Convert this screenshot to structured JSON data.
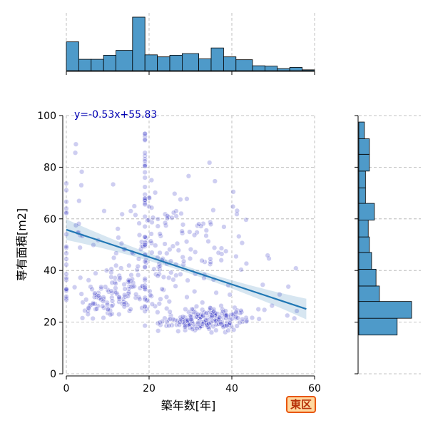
{
  "chart_data": {
    "type": "scatter",
    "xlabel": "築年数[年]",
    "ylabel": "専有面積[m2]",
    "xlim": [
      0,
      60
    ],
    "ylim": [
      0,
      100
    ],
    "xticks": [
      "0",
      "20",
      "40",
      "60"
    ],
    "yticks": [
      "0",
      "20",
      "40",
      "60",
      "80",
      "100"
    ],
    "grid": true,
    "point_color": "#1f1fbf",
    "regression": {
      "label": "y=-0.53x+55.83",
      "slope": -0.53,
      "intercept": 55.83,
      "x_range": [
        0,
        58
      ],
      "color": "#1f77b4"
    },
    "top_histogram": {
      "bins": [
        [
          0,
          3
        ],
        [
          3,
          6
        ],
        [
          6,
          9
        ],
        [
          9,
          12
        ],
        [
          12,
          16
        ],
        [
          16,
          19
        ],
        [
          19,
          22
        ],
        [
          22,
          25
        ],
        [
          25,
          28
        ],
        [
          28,
          32
        ],
        [
          32,
          35
        ],
        [
          35,
          38
        ],
        [
          38,
          41
        ],
        [
          41,
          45
        ],
        [
          45,
          48
        ],
        [
          48,
          51
        ],
        [
          51,
          54
        ],
        [
          54,
          57
        ],
        [
          57,
          60
        ]
      ],
      "counts": [
        71,
        28,
        28,
        38,
        50,
        132,
        39,
        34,
        38,
        42,
        29,
        56,
        34,
        27,
        12,
        11,
        5,
        8,
        2
      ]
    },
    "right_histogram": {
      "bins": [
        [
          15,
          21.5
        ],
        [
          21.5,
          28
        ],
        [
          28,
          34
        ],
        [
          34,
          40.5
        ],
        [
          40.5,
          47
        ],
        [
          47,
          53
        ],
        [
          53,
          59.5
        ],
        [
          59.5,
          66
        ],
        [
          66,
          72
        ],
        [
          72,
          78.5
        ],
        [
          78.5,
          85
        ],
        [
          85,
          91
        ],
        [
          91,
          97.5
        ]
      ],
      "counts": [
        69,
        95,
        37,
        31,
        23,
        19,
        17,
        28,
        12,
        12,
        19,
        19,
        10
      ]
    }
  },
  "badge": {
    "label": "東区"
  },
  "colors": {
    "bar_fill": "#4e9ac9",
    "bar_edge": "#000000",
    "grid": "#b0b0b0"
  }
}
